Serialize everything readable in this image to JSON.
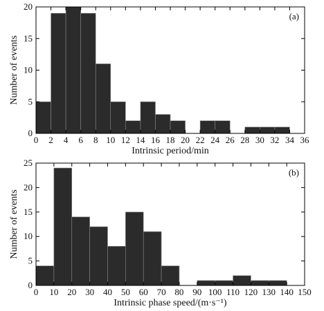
{
  "chart_data": [
    {
      "type": "histogram",
      "annotation": "(a)",
      "xlabel": "Intrinsic period/min",
      "ylabel": "Number of events",
      "bins": [
        0,
        2,
        4,
        6,
        8,
        10,
        12,
        14,
        16,
        18,
        20,
        22,
        24,
        26,
        28,
        30,
        32,
        34
      ],
      "values": [
        5,
        19,
        20,
        19,
        11,
        5,
        2,
        5,
        3,
        2,
        0,
        2,
        2,
        0,
        1,
        1,
        1
      ],
      "color": "#2b2b2b",
      "xlim": [
        0,
        36
      ],
      "xticks": [
        0,
        2,
        4,
        6,
        8,
        10,
        12,
        14,
        16,
        18,
        20,
        22,
        24,
        26,
        28,
        30,
        32,
        34,
        36
      ],
      "ylim": [
        0,
        20
      ],
      "yticks": [
        0,
        5,
        10,
        15,
        20
      ]
    },
    {
      "type": "histogram",
      "annotation": "(b)",
      "xlabel": "Intrinsic phase speed/(m·s⁻¹)",
      "ylabel": "Number of events",
      "bins": [
        0,
        10,
        20,
        30,
        40,
        50,
        60,
        70,
        80,
        90,
        100,
        110,
        120,
        130,
        140
      ],
      "values": [
        4,
        24,
        14,
        12,
        8,
        15,
        11,
        4,
        0,
        1,
        1,
        2,
        1,
        1
      ],
      "color": "#2b2b2b",
      "xlim": [
        0,
        150
      ],
      "xticks": [
        0,
        10,
        20,
        30,
        40,
        50,
        60,
        70,
        80,
        90,
        100,
        110,
        120,
        130,
        140,
        150
      ],
      "ylim": [
        0,
        25
      ],
      "yticks": [
        0,
        5,
        10,
        15,
        20,
        25
      ]
    }
  ]
}
